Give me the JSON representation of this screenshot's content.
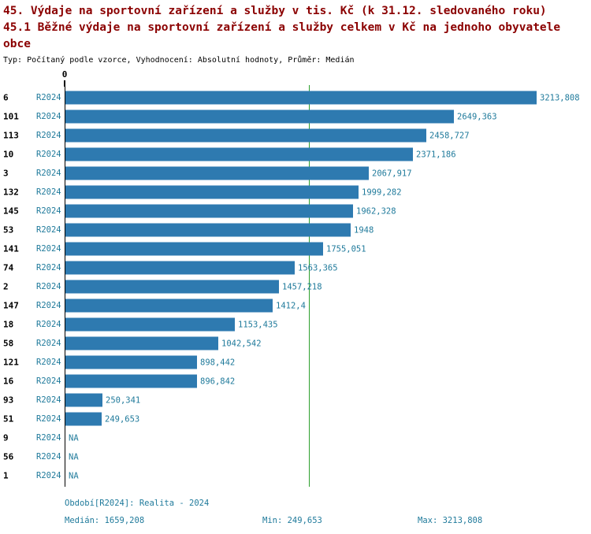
{
  "chart_data": {
    "type": "bar",
    "orientation": "horizontal",
    "title_lines": [
      "45. Výdaje na sportovní zařízení a služby v tis. Kč (k 31.12. sledovaného roku)",
      "45.1 Běžné výdaje na sportovní zařízení a služby celkem v Kč na jednoho obyvatele",
      "obce"
    ],
    "meta_line": "Typ: Počítaný podle vzorce, Vyhodnocení: Absolutní hodnoty, Průměr: Medián",
    "origin_tick_label": "0",
    "period_label": "R2024",
    "categories": [
      "6",
      "101",
      "113",
      "10",
      "3",
      "132",
      "145",
      "53",
      "141",
      "74",
      "2",
      "147",
      "18",
      "58",
      "121",
      "16",
      "93",
      "51",
      "9",
      "56",
      "1"
    ],
    "values": [
      3213.808,
      2649.363,
      2458.727,
      2371.186,
      2067.917,
      1999.282,
      1962.328,
      1948,
      1755.051,
      1563.365,
      1457.218,
      1412.4,
      1153.435,
      1042.542,
      898.442,
      896.842,
      250.341,
      249.653,
      null,
      null,
      null
    ],
    "value_labels": [
      "3213,808",
      "2649,363",
      "2458,727",
      "2371,186",
      "2067,917",
      "1999,282",
      "1962,328",
      "1948",
      "1755,051",
      "1563,365",
      "1457,218",
      "1412,4",
      "1153,435",
      "1042,542",
      "898,442",
      "896,842",
      "250,341",
      "249,653",
      "NA",
      "NA",
      "NA"
    ],
    "xlim": [
      0,
      3213.808
    ],
    "median_value": 1659.208,
    "grid": false,
    "legend": "none",
    "colors": {
      "bar": "#2e7ab0",
      "median_line": "#2ca02c",
      "label_text": "#1f7a9b",
      "title_text": "#8b0000"
    },
    "footer": {
      "period": "Období[R2024]: Realita - 2024",
      "median": "Medián: 1659,208",
      "min": "Min: 249,653",
      "max": "Max: 3213,808"
    }
  }
}
